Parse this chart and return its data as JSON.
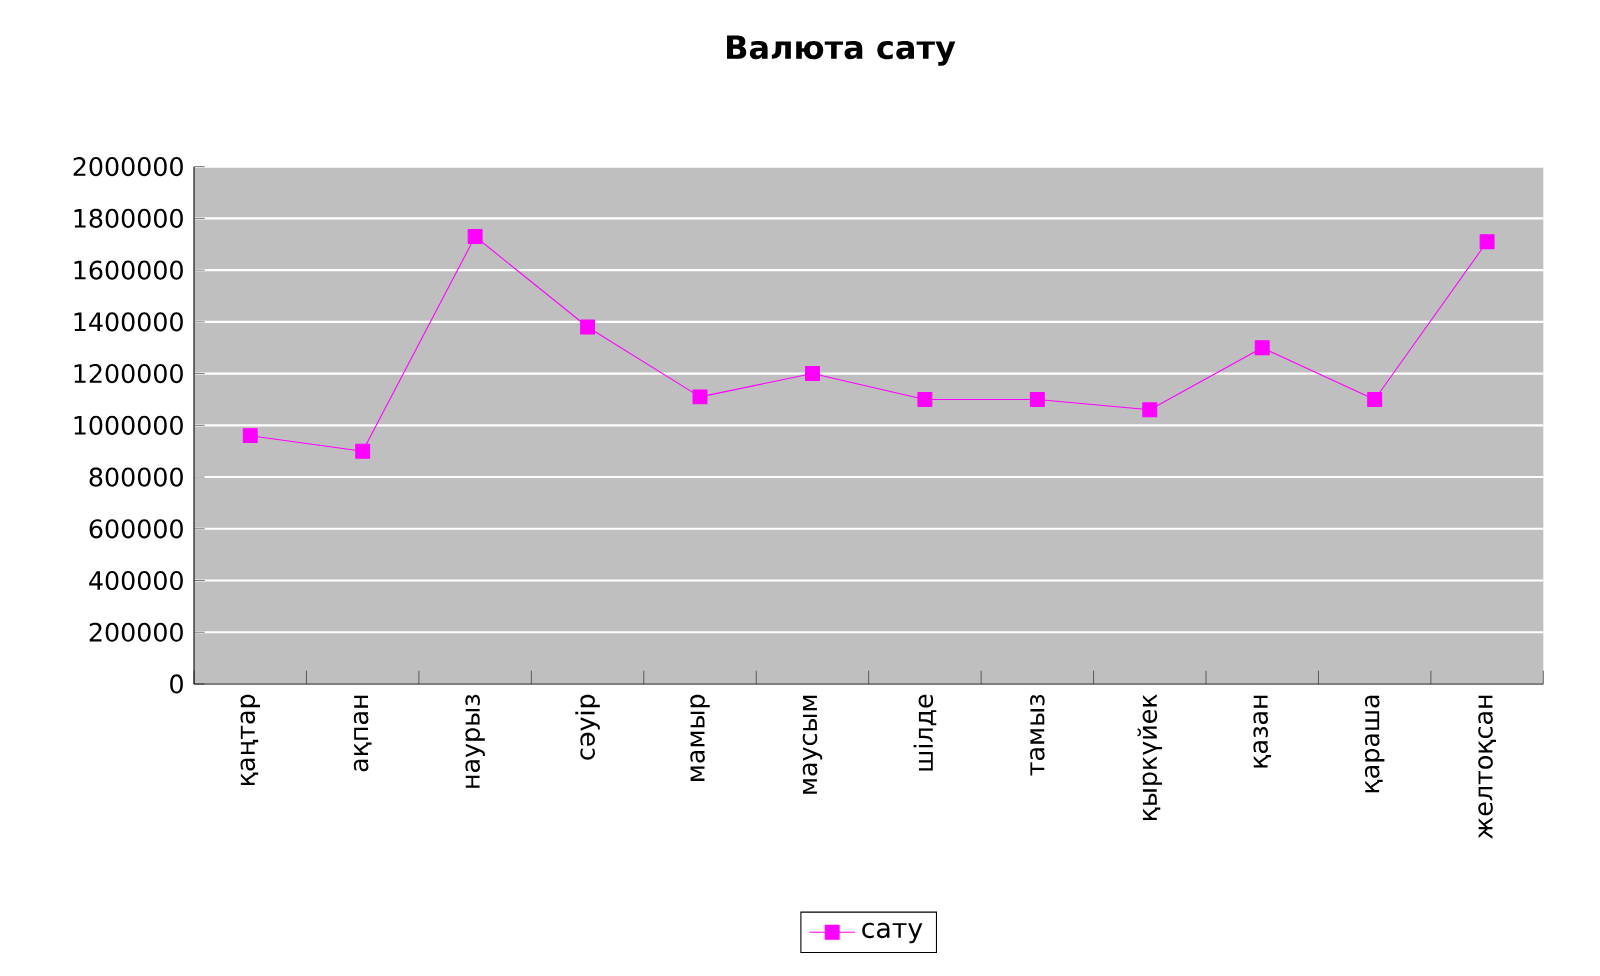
{
  "chart_data": {
    "type": "line",
    "title": "Валюта сату",
    "categories": [
      "қаңтар",
      "ақпан",
      "наурыз",
      "сәуір",
      "мамыр",
      "маусым",
      "шілде",
      "тамыз",
      "қыркүйек",
      "қазан",
      "қараша",
      "желтоқсан"
    ],
    "series": [
      {
        "name": "сату",
        "color": "#ff00ff",
        "values": [
          960000,
          900000,
          1730000,
          1380000,
          1110000,
          1200000,
          1100000,
          1100000,
          1060000,
          1300000,
          1100000,
          1710000
        ]
      }
    ],
    "ylim": [
      0,
      2000000
    ],
    "yticks": [
      0,
      200000,
      400000,
      600000,
      800000,
      1000000,
      1200000,
      1400000,
      1600000,
      1800000,
      2000000
    ],
    "grid": "y",
    "legend": "bottom",
    "marker": "square",
    "line_style": "solid"
  }
}
